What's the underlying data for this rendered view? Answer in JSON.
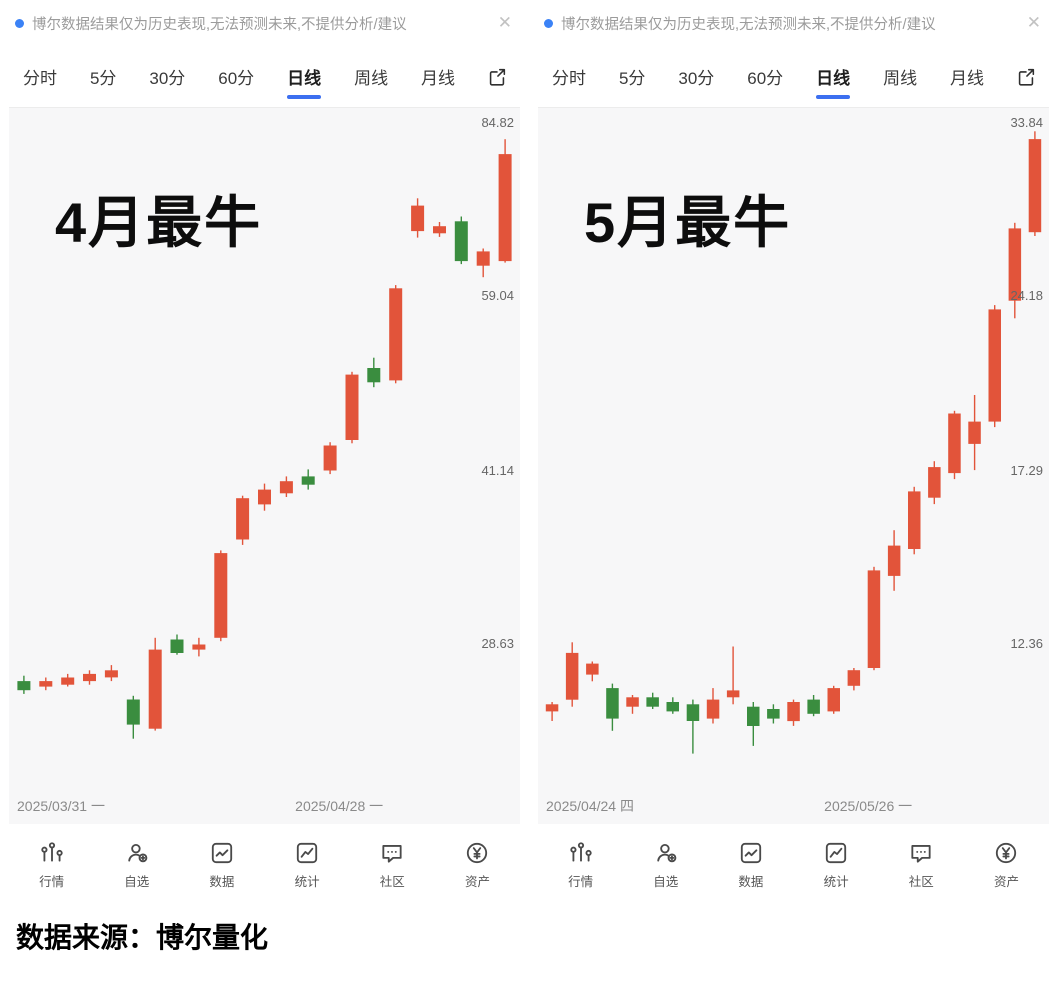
{
  "notice": {
    "text": "博尔数据结果仅为历史表现,无法预测未来,不提供分析/建议",
    "close_glyph": "✕"
  },
  "tabs": {
    "items": [
      "分时",
      "5分",
      "30分",
      "60分",
      "日线",
      "周线",
      "月线"
    ],
    "active": "日线"
  },
  "chart_data": [
    {
      "type": "candlestick",
      "title": "4月最牛",
      "scale": "log",
      "grid": false,
      "y_ticks": [
        84.82,
        59.04,
        41.14,
        28.63
      ],
      "x_ticks": [
        "2025/03/31 一",
        "2025/04/28 一"
      ],
      "candles_format": [
        "open",
        "high",
        "low",
        "close"
      ],
      "candles": [
        [
          26.5,
          26.8,
          25.8,
          26.0
        ],
        [
          26.2,
          26.7,
          26.0,
          26.5
        ],
        [
          26.3,
          26.9,
          26.2,
          26.7
        ],
        [
          26.5,
          27.1,
          26.3,
          26.9
        ],
        [
          26.7,
          27.4,
          26.5,
          27.1
        ],
        [
          25.5,
          25.7,
          23.5,
          24.2
        ],
        [
          24.0,
          29.0,
          23.9,
          28.3
        ],
        [
          28.9,
          29.2,
          28.0,
          28.1
        ],
        [
          28.3,
          29.0,
          27.9,
          28.6
        ],
        [
          29.0,
          34.8,
          28.8,
          34.6
        ],
        [
          35.6,
          39.0,
          35.2,
          38.8
        ],
        [
          38.3,
          40.0,
          37.8,
          39.5
        ],
        [
          39.2,
          40.6,
          38.9,
          40.2
        ],
        [
          40.6,
          41.2,
          39.5,
          39.9
        ],
        [
          41.1,
          43.6,
          40.8,
          43.3
        ],
        [
          43.8,
          50.5,
          43.5,
          50.2
        ],
        [
          50.9,
          52.0,
          48.9,
          49.4
        ],
        [
          49.6,
          60.5,
          49.3,
          60.1
        ],
        [
          67.7,
          72.5,
          66.8,
          71.4
        ],
        [
          67.4,
          69.0,
          66.9,
          68.4
        ],
        [
          69.1,
          69.8,
          63.2,
          63.6
        ],
        [
          63.0,
          65.3,
          61.5,
          64.9
        ],
        [
          63.6,
          82.0,
          63.4,
          79.5
        ]
      ]
    },
    {
      "type": "candlestick",
      "title": "5月最牛",
      "scale": "log",
      "grid": false,
      "y_ticks": [
        33.84,
        24.18,
        17.29,
        12.36
      ],
      "x_ticks": [
        "2025/04/24 四",
        "2025/05/26 一"
      ],
      "candles_format": [
        "open",
        "high",
        "low",
        "close"
      ],
      "candles": [
        [
          10.85,
          11.05,
          10.65,
          11.0
        ],
        [
          11.1,
          12.4,
          10.95,
          12.15
        ],
        [
          11.65,
          11.95,
          11.5,
          11.9
        ],
        [
          11.35,
          11.45,
          10.45,
          10.7
        ],
        [
          10.95,
          11.2,
          10.8,
          11.15
        ],
        [
          11.15,
          11.25,
          10.9,
          10.95
        ],
        [
          11.05,
          11.15,
          10.8,
          10.85
        ],
        [
          11.0,
          11.1,
          10.0,
          10.65
        ],
        [
          10.7,
          11.35,
          10.6,
          11.1
        ],
        [
          11.15,
          12.3,
          11.0,
          11.3
        ],
        [
          10.95,
          11.05,
          10.15,
          10.55
        ],
        [
          10.9,
          11.0,
          10.6,
          10.7
        ],
        [
          10.65,
          11.1,
          10.55,
          11.05
        ],
        [
          11.1,
          11.2,
          10.75,
          10.8
        ],
        [
          10.85,
          11.4,
          10.8,
          11.35
        ],
        [
          11.4,
          11.8,
          11.3,
          11.75
        ],
        [
          11.8,
          14.35,
          11.75,
          14.25
        ],
        [
          14.1,
          15.4,
          13.7,
          14.95
        ],
        [
          14.85,
          16.75,
          14.7,
          16.6
        ],
        [
          16.4,
          17.6,
          16.2,
          17.4
        ],
        [
          17.2,
          19.4,
          17.0,
          19.3
        ],
        [
          18.2,
          20.0,
          17.3,
          19.0
        ],
        [
          19.0,
          23.8,
          18.8,
          23.6
        ],
        [
          24.0,
          27.9,
          23.2,
          27.6
        ],
        [
          27.4,
          33.3,
          27.2,
          32.8
        ]
      ]
    }
  ],
  "bottom_nav": [
    {
      "label": "行情",
      "icon": "quotes-bars-icon"
    },
    {
      "label": "自选",
      "icon": "watchlist-person-icon"
    },
    {
      "label": "数据",
      "icon": "data-chart-icon"
    },
    {
      "label": "统计",
      "icon": "stats-chart-icon"
    },
    {
      "label": "社区",
      "icon": "community-chat-icon"
    },
    {
      "label": "资产",
      "icon": "assets-yen-icon"
    }
  ],
  "footer": {
    "source_text": "数据来源：博尔量化"
  },
  "colors": {
    "up": "#e2543a",
    "down": "#3a8d3f",
    "accent": "#3c6ff0",
    "notice_dot": "#3b82f6"
  }
}
